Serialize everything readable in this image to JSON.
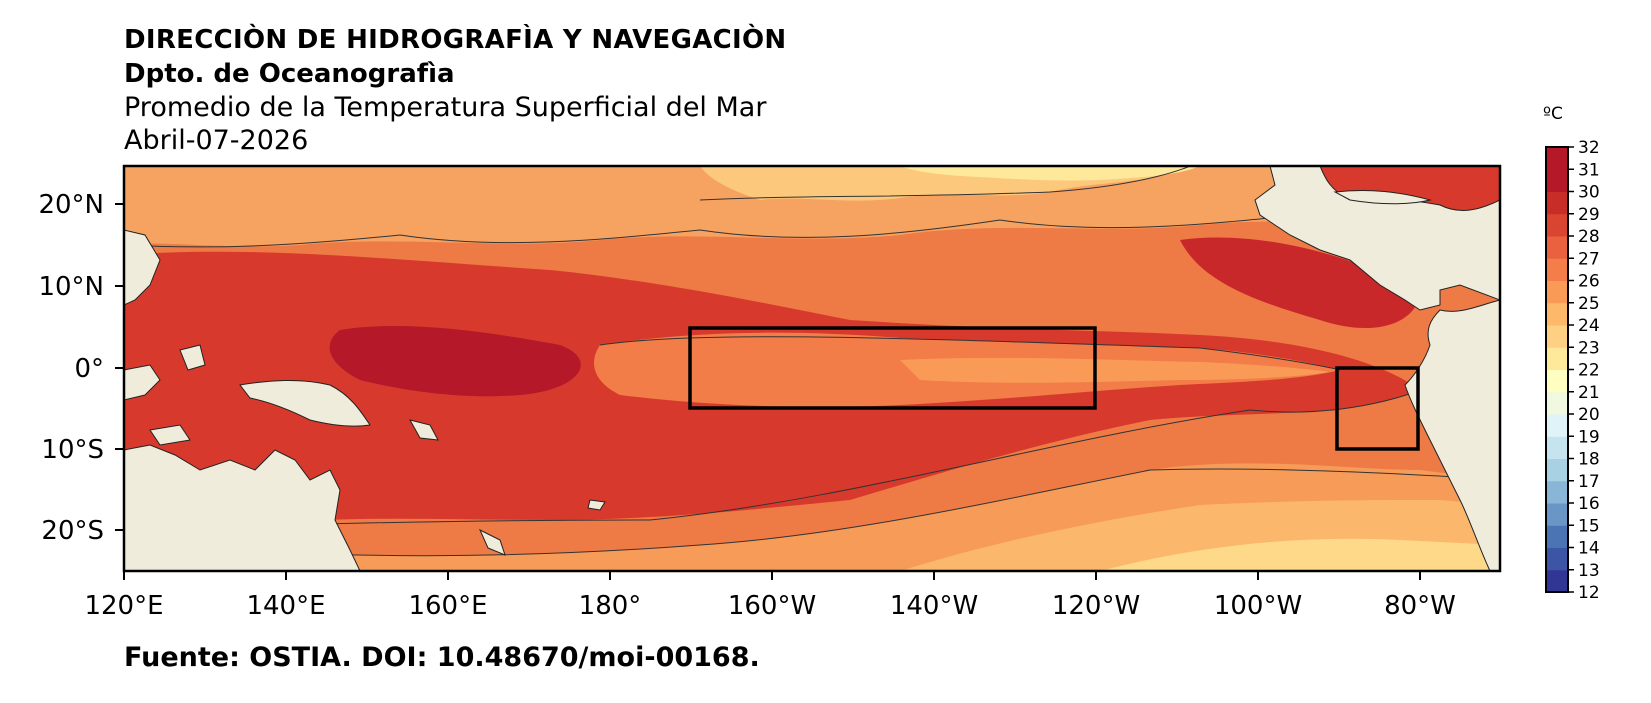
{
  "header": {
    "line1": "DIRECCIÒN DE HIDROGRAFÌA Y NAVEGACIÒN",
    "line2": "Dpto. de Oceanografìa",
    "line3": "Promedio de la Temperatura Superficial del Mar",
    "line4": "Abril-07-2026"
  },
  "footer": {
    "source": "Fuente: OSTIA. DOI: 10.48670/moi-00168."
  },
  "map": {
    "region": "Pacífico Tropical",
    "lon_ticks": [
      "120°E",
      "140°E",
      "160°E",
      "180°",
      "160°W",
      "140°W",
      "120°W",
      "100°W",
      "80°W"
    ],
    "lat_ticks": [
      "20°N",
      "10°N",
      "0°",
      "10°S",
      "20°S"
    ],
    "land_color": "#efecdc",
    "boxes": [
      {
        "name": "Niño 3.4",
        "lon": [
          190,
          240
        ],
        "lat": [
          -5,
          5
        ]
      },
      {
        "name": "Niño 1+2",
        "lon": [
          270,
          280
        ],
        "lat": [
          -10,
          0
        ]
      }
    ]
  },
  "colorbar": {
    "unit": "ºC",
    "min": 12,
    "max": 32,
    "labels": [
      "32",
      "31",
      "30",
      "29",
      "28",
      "27",
      "26",
      "25",
      "24",
      "23",
      "22",
      "21",
      "20",
      "19",
      "18",
      "17",
      "16",
      "15",
      "14",
      "13",
      "12"
    ],
    "colors": [
      "#313695",
      "#3d55a5",
      "#4a74b4",
      "#6a96c6",
      "#89b6d6",
      "#a8d1e4",
      "#c6e4ef",
      "#e0f3f8",
      "#f0f8df",
      "#fefec0",
      "#fee89a",
      "#fed084",
      "#fdb869",
      "#f99b57",
      "#f47d4a",
      "#e9613e",
      "#da4531",
      "#c92d27",
      "#b51829"
    ]
  }
}
